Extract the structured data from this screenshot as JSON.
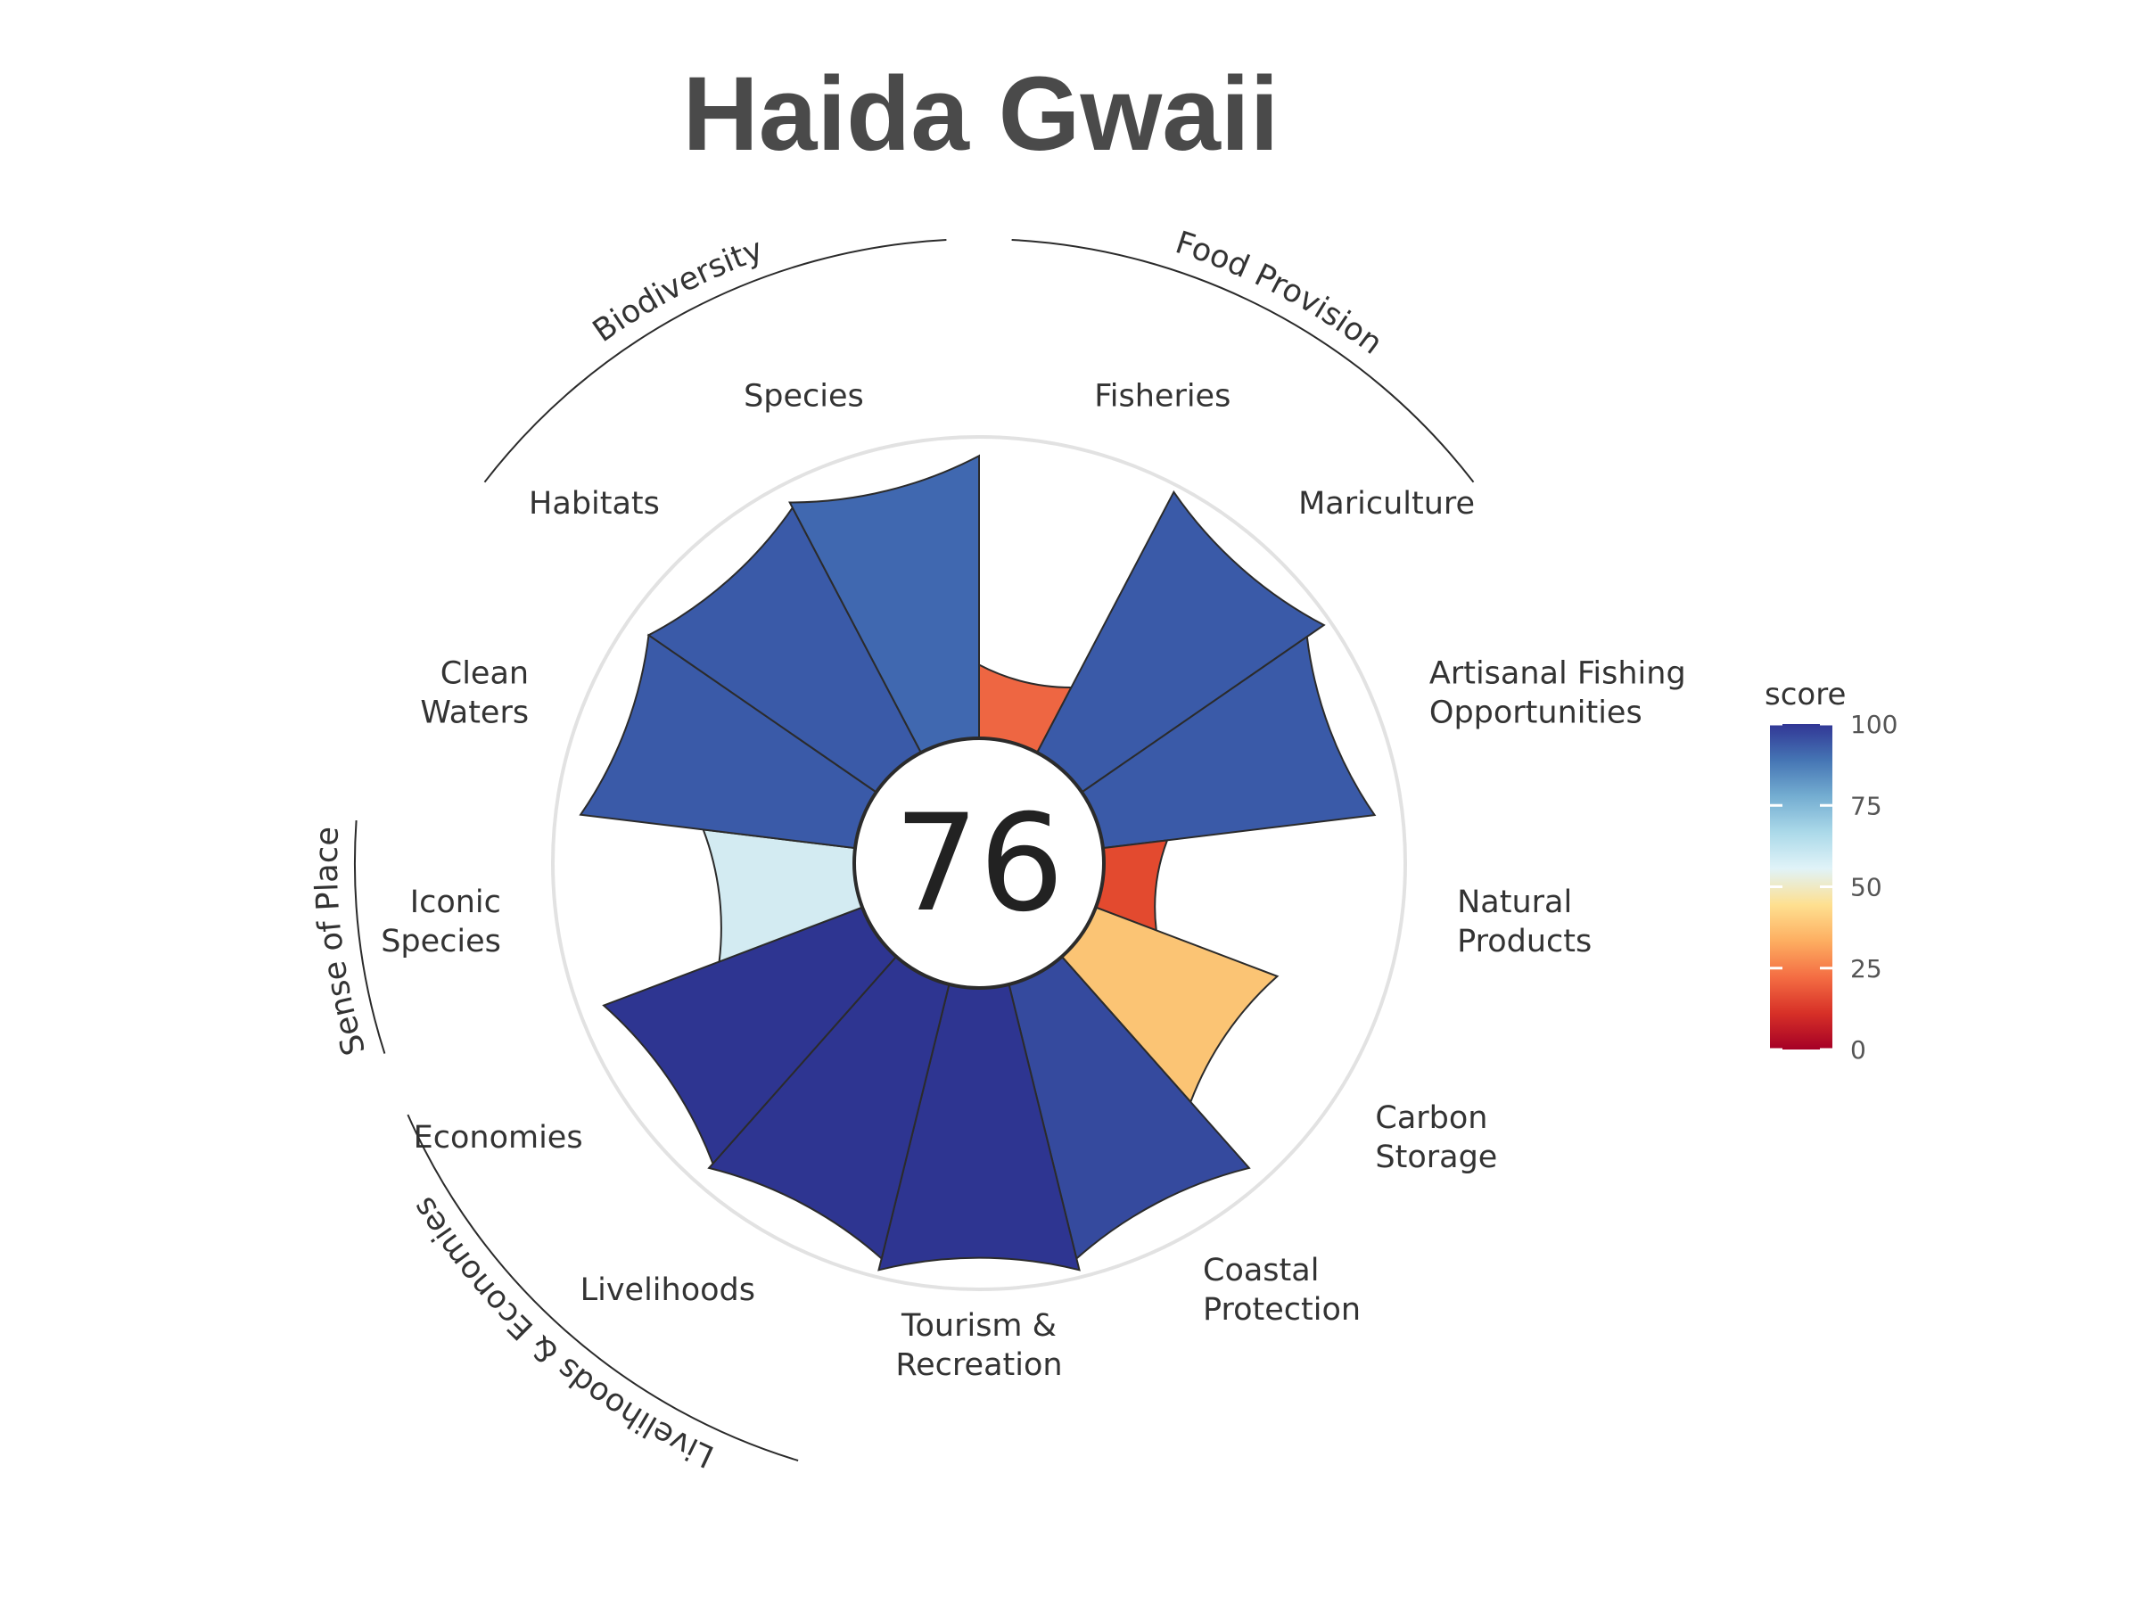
{
  "chart_data": {
    "type": "polar-bar",
    "title": "Haida Gwaii",
    "center_score": "76",
    "ylim": [
      0,
      100
    ],
    "grid": false,
    "legend": {
      "title": "score",
      "placement": "right",
      "ticks": [
        "100",
        "75",
        "50",
        "25",
        "0"
      ]
    },
    "goals": [
      {
        "label": "Fisheries",
        "value": 25,
        "color": "#ee6642",
        "group": 0
      },
      {
        "label": "Mariculture",
        "value": 100,
        "color": "#3a5aa8",
        "group": 0
      },
      {
        "label": "Artisanal Fishing Opportunities",
        "value": 93,
        "color": "#3a5aa8",
        "group": -1
      },
      {
        "label": "Natural Products",
        "value": 22,
        "color": "#e34a2f",
        "group": -1
      },
      {
        "label": "Carbon Storage",
        "value": 66,
        "color": "#fbc474",
        "group": -1
      },
      {
        "label": "Coastal Protection",
        "value": 96,
        "color": "#354a9e",
        "group": -1
      },
      {
        "label": "Tourism & Recreation",
        "value": 100,
        "color": "#2e3591",
        "group": -1
      },
      {
        "label": "Livelihoods",
        "value": 96,
        "color": "#2e3591",
        "group": 4
      },
      {
        "label": "Economies",
        "value": 94,
        "color": "#2e3591",
        "group": 4
      },
      {
        "label": "Iconic Species",
        "value": 52,
        "color": "#d3ebf2",
        "group": 3
      },
      {
        "label": "Clean Waters",
        "value": 94,
        "color": "#3a5aa8",
        "group": -1
      },
      {
        "label": "Habitats",
        "value": 94,
        "color": "#3a5aa8",
        "group": 2
      },
      {
        "label": "Species",
        "value": 96,
        "color": "#4068b0",
        "group": 2
      }
    ],
    "groups": [
      "Food Provision",
      "",
      "Biodiversity",
      "Sense of Place",
      "Livelihoods & Economies"
    ]
  },
  "legend_gradient": [
    "#a50026",
    "#d73027",
    "#f46d43",
    "#fdae61",
    "#fee090",
    "#e0f3f8",
    "#abd9e9",
    "#74add1",
    "#4575b4",
    "#313695"
  ]
}
